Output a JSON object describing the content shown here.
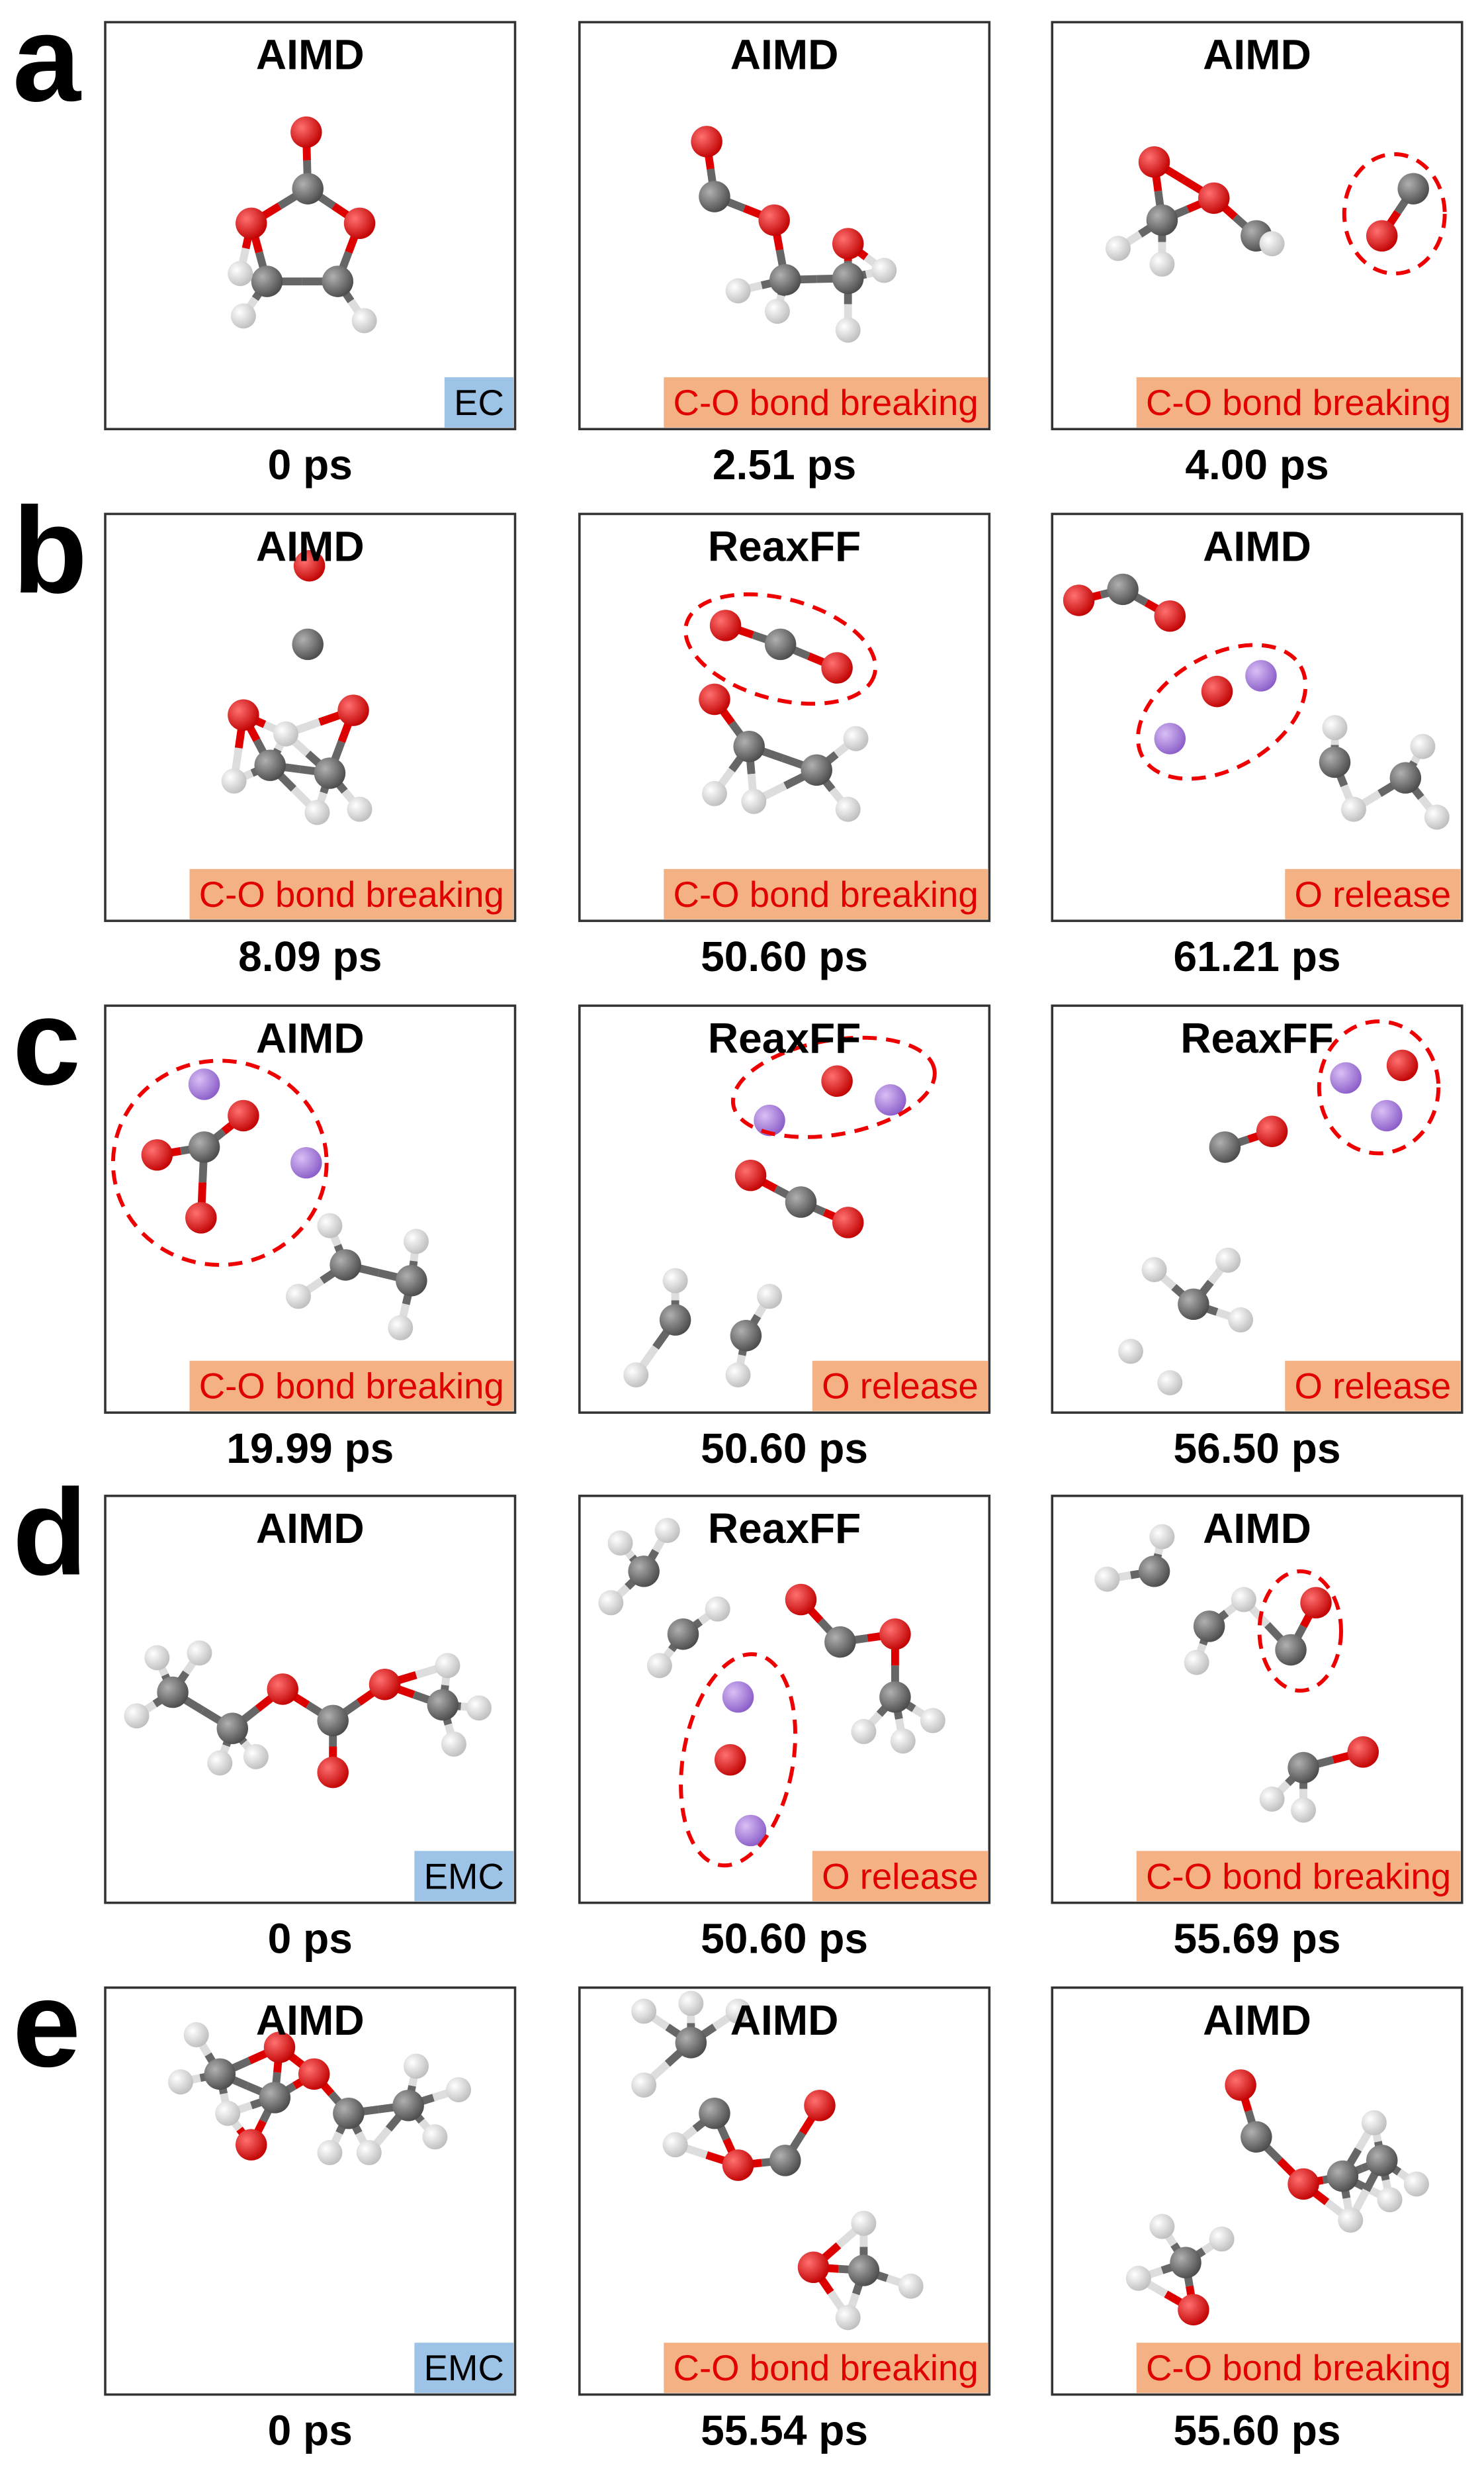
{
  "rows": [
    {
      "label": "a",
      "panels": [
        {
          "method": "AIMD",
          "tag": "EC",
          "tag_color": "#9dc3e6",
          "tag_text_color": "#000000",
          "time": "0 ps"
        },
        {
          "method": "AIMD",
          "tag": "C-O bond breaking",
          "tag_color": "#f4b183",
          "tag_text_color": "#e00000",
          "time": "2.51 ps"
        },
        {
          "method": "AIMD",
          "tag": "C-O bond breaking",
          "tag_color": "#f4b183",
          "tag_text_color": "#e00000",
          "time": "4.00 ps"
        }
      ]
    },
    {
      "label": "b",
      "panels": [
        {
          "method": "AIMD",
          "tag": "C-O bond breaking",
          "tag_color": "#f4b183",
          "tag_text_color": "#e00000",
          "time": "8.09 ps"
        },
        {
          "method": "ReaxFF",
          "tag": "C-O bond breaking",
          "tag_color": "#f4b183",
          "tag_text_color": "#e00000",
          "time": "50.60 ps"
        },
        {
          "method": "AIMD",
          "tag": "O release",
          "tag_color": "#f4b183",
          "tag_text_color": "#e00000",
          "time": "61.21 ps"
        }
      ]
    },
    {
      "label": "c",
      "panels": [
        {
          "method": "AIMD",
          "tag": "C-O bond breaking",
          "tag_color": "#f4b183",
          "tag_text_color": "#e00000",
          "time": "19.99 ps"
        },
        {
          "method": "ReaxFF",
          "tag": "O release",
          "tag_color": "#f4b183",
          "tag_text_color": "#e00000",
          "time": "50.60 ps"
        },
        {
          "method": "ReaxFF",
          "tag": "O release",
          "tag_color": "#f4b183",
          "tag_text_color": "#e00000",
          "time": "56.50 ps"
        }
      ]
    },
    {
      "label": "d",
      "panels": [
        {
          "method": "AIMD",
          "tag": "EMC",
          "tag_color": "#9dc3e6",
          "tag_text_color": "#000000",
          "time": "0 ps"
        },
        {
          "method": "ReaxFF",
          "tag": "O release",
          "tag_color": "#f4b183",
          "tag_text_color": "#e00000",
          "time": "50.60 ps"
        },
        {
          "method": "AIMD",
          "tag": "C-O bond breaking",
          "tag_color": "#f4b183",
          "tag_text_color": "#e00000",
          "time": "55.69 ps"
        }
      ]
    },
    {
      "label": "e",
      "panels": [
        {
          "method": "AIMD",
          "tag": "EMC",
          "tag_color": "#9dc3e6",
          "tag_text_color": "#000000",
          "time": "0 ps"
        },
        {
          "method": "AIMD",
          "tag": "C-O bond breaking",
          "tag_color": "#f4b183",
          "tag_text_color": "#e00000",
          "time": "55.54 ps"
        },
        {
          "method": "AIMD",
          "tag": "C-O bond breaking",
          "tag_color": "#f4b183",
          "tag_text_color": "#e00000",
          "time": "55.60 ps"
        }
      ]
    }
  ]
}
